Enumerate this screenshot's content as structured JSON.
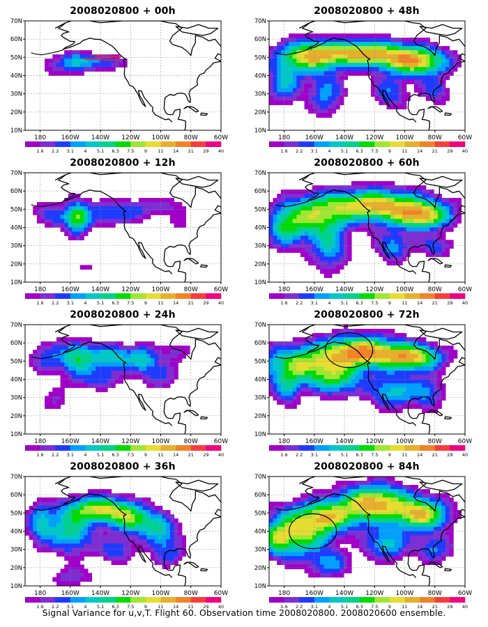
{
  "figure": {
    "caption": "Signal Variance for u,v,T. Flight 60. Observation time 2008020800. 2008020600 ensemble.",
    "panels": [
      {
        "title": "2008020800 + 00h",
        "lead_hours": 0,
        "amp": 0.45,
        "ellipses": [],
        "obs_points": true
      },
      {
        "title": "2008020800 + 12h",
        "lead_hours": 12,
        "amp": 0.6,
        "ellipses": [],
        "obs_points": false
      },
      {
        "title": "2008020800 + 24h",
        "lead_hours": 24,
        "amp": 0.75,
        "ellipses": [],
        "obs_points": false
      },
      {
        "title": "2008020800 + 36h",
        "lead_hours": 36,
        "amp": 0.95,
        "ellipses": [],
        "obs_points": false
      },
      {
        "title": "2008020800 + 48h",
        "lead_hours": 48,
        "amp": 1.05,
        "ellipses": [],
        "obs_points": false
      },
      {
        "title": "2008020800 + 60h",
        "lead_hours": 60,
        "amp": 1.05,
        "ellipses": [],
        "obs_points": false
      },
      {
        "title": "2008020800 + 72h",
        "lead_hours": 72,
        "amp": 1.1,
        "ellipses": [
          {
            "lon": -137,
            "lat": 56
          }
        ],
        "obs_points": false
      },
      {
        "title": "2008020800 + 84h",
        "lead_hours": 84,
        "amp": 1.1,
        "ellipses": [
          {
            "lon": -161,
            "lat": 40
          }
        ],
        "obs_points": false
      }
    ],
    "lon_ticks": [
      "180",
      "160W",
      "140W",
      "120W",
      "100W",
      "80W",
      "60W"
    ],
    "lat_ticks": [
      "10N",
      "20N",
      "30N",
      "40N",
      "50N",
      "60N",
      "70N"
    ],
    "lon_range": [
      -190,
      -60
    ],
    "lat_range": [
      10,
      70
    ],
    "colorbar": {
      "labels": [
        "1.6",
        "2.2",
        "3.1",
        "4",
        "5.1",
        "6.3",
        "7.5",
        "9",
        "11",
        "14",
        "21",
        "29",
        "40"
      ],
      "colors": [
        "#a000c8",
        "#7d2fd2",
        "#1e3cff",
        "#00a0ff",
        "#00c8c8",
        "#00d28c",
        "#00dc00",
        "#a0e632",
        "#e6dc32",
        "#e6af2d",
        "#f08228",
        "#fa3c3c",
        "#f00082"
      ]
    }
  }
}
